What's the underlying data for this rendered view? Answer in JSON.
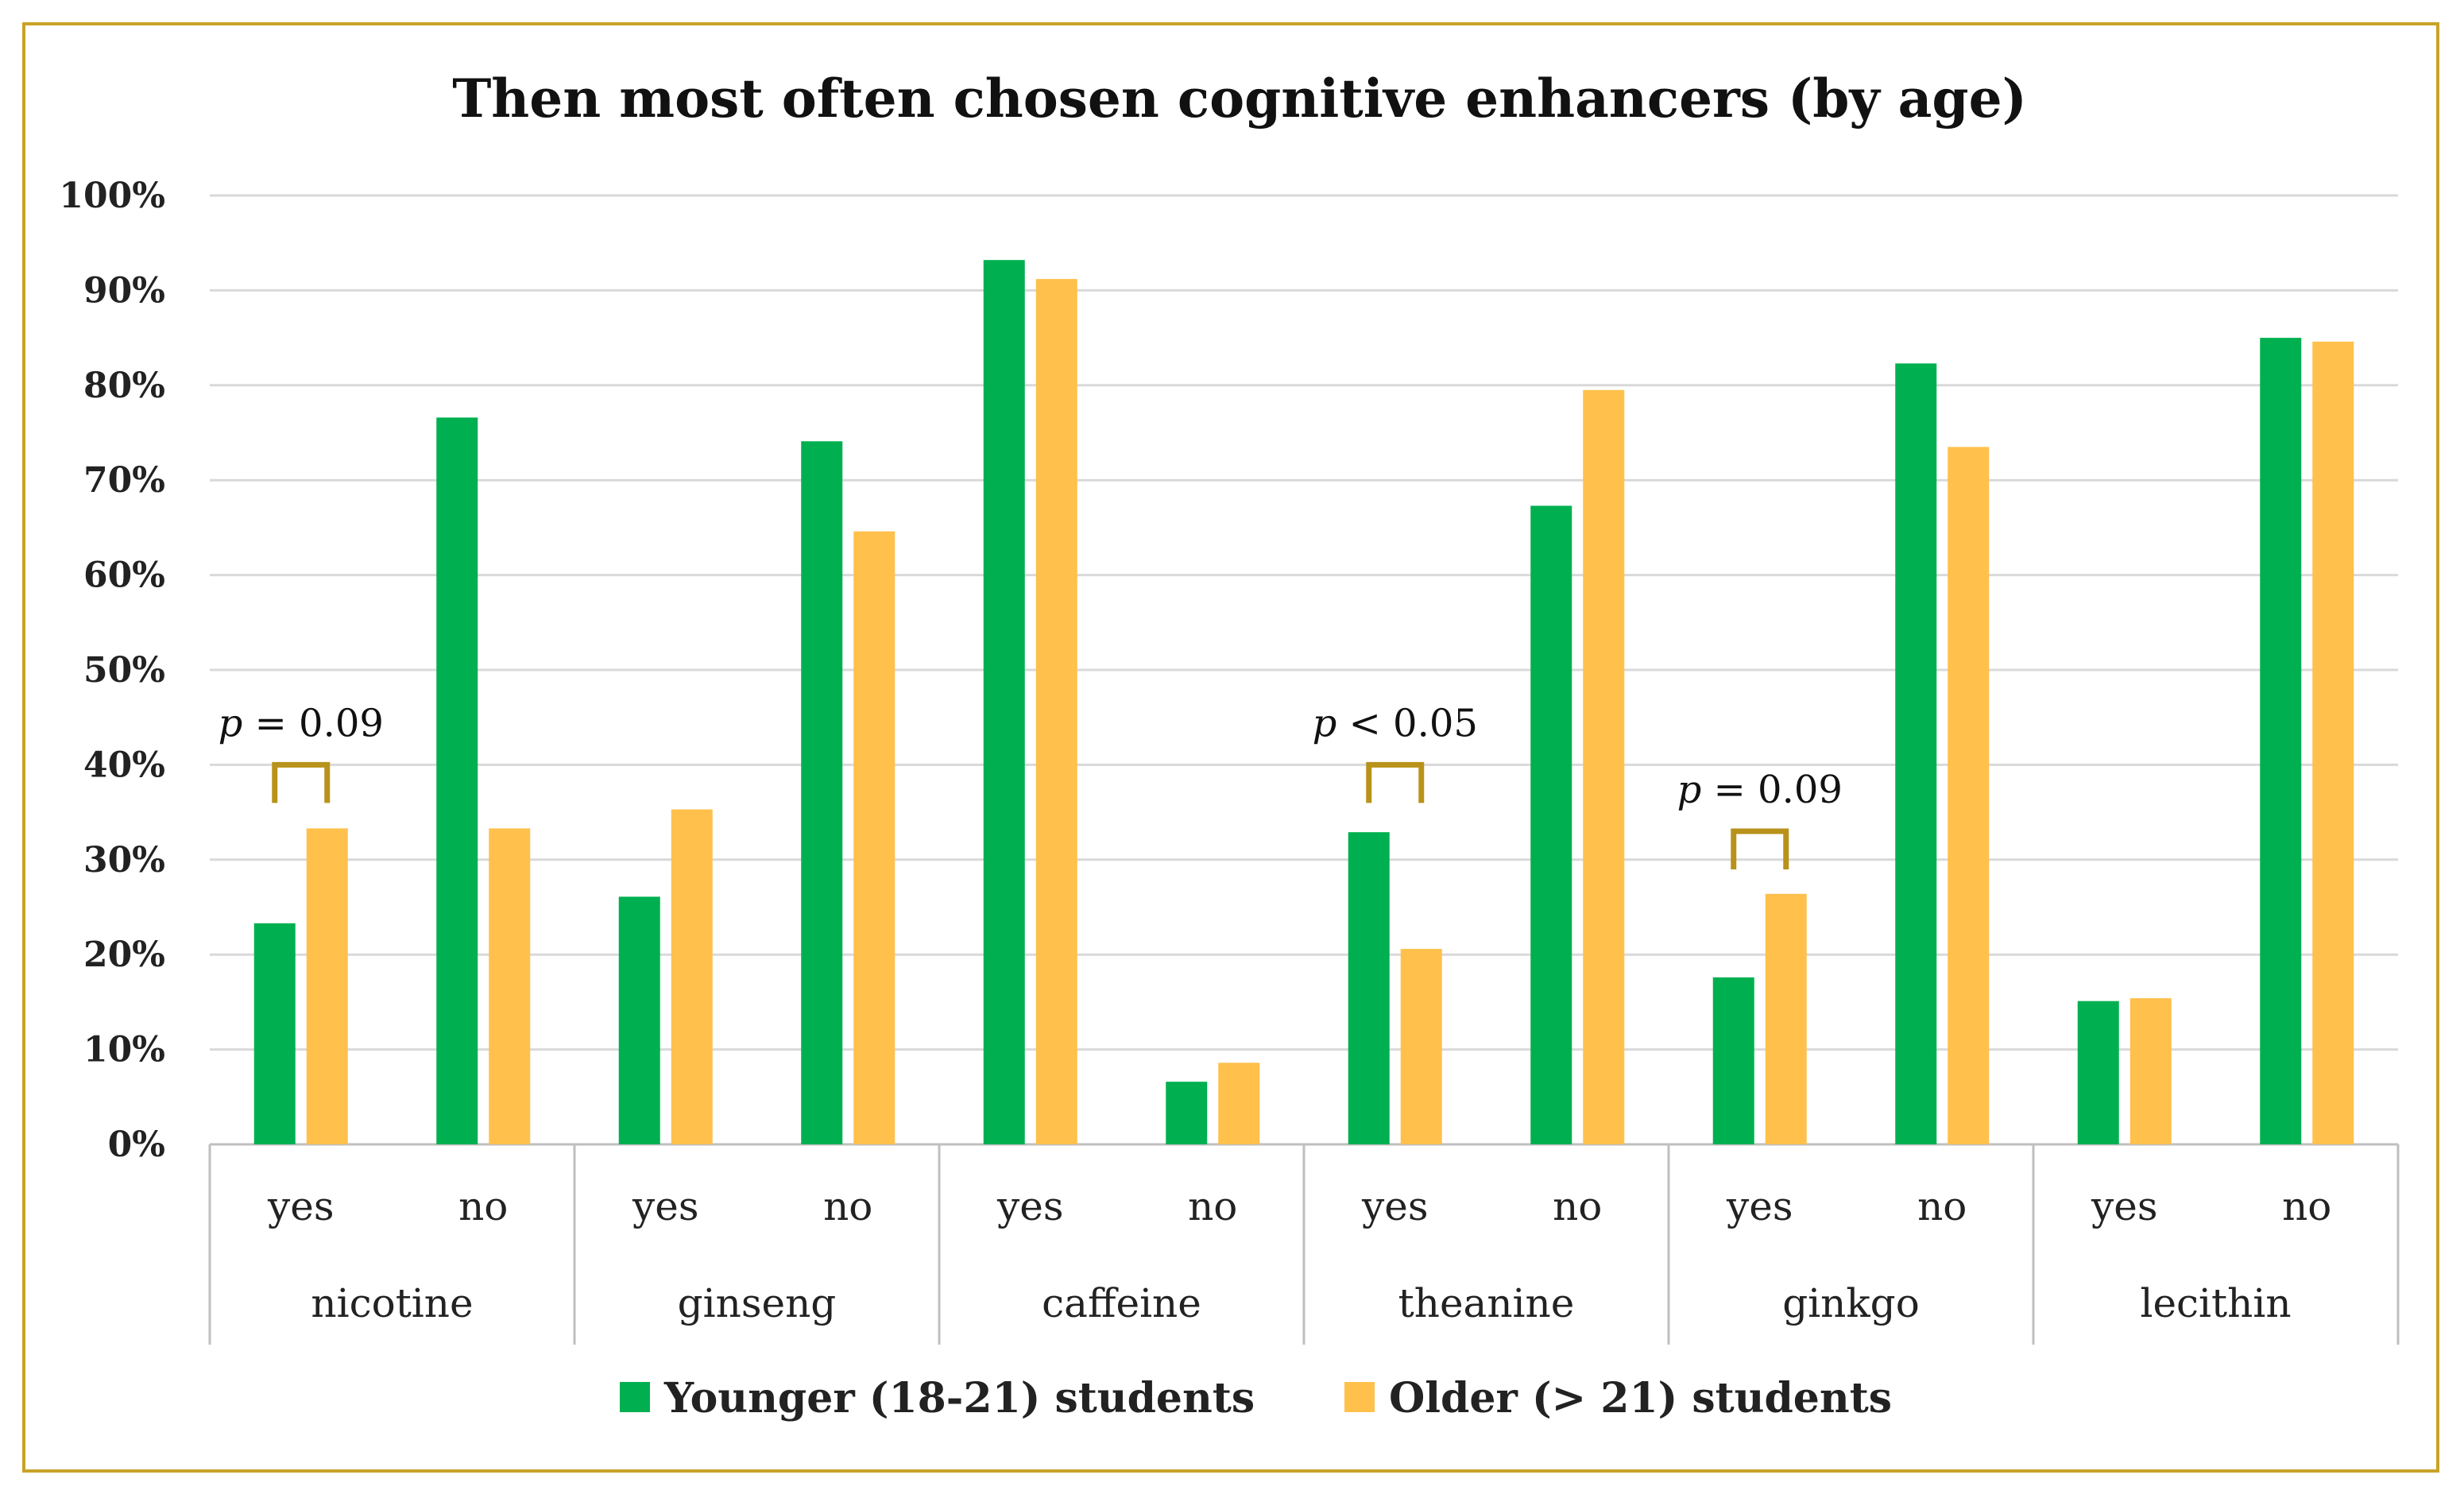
{
  "chart_data": {
    "type": "bar",
    "title": "Then most often chosen cognitive enhancers (by age)",
    "xlabel": "",
    "ylabel": "",
    "ylim": [
      0,
      100
    ],
    "y_ticks": [
      "0%",
      "10%",
      "20%",
      "30%",
      "40%",
      "50%",
      "60%",
      "70%",
      "80%",
      "90%",
      "100%"
    ],
    "grid": true,
    "legend_position": "bottom",
    "groups": [
      "nicotine",
      "ginseng",
      "caffeine",
      "theanine",
      "ginkgo",
      "lecithin"
    ],
    "categories": [
      "yes",
      "no",
      "yes",
      "no",
      "yes",
      "no",
      "yes",
      "no",
      "yes",
      "no",
      "yes",
      "no"
    ],
    "series": [
      {
        "name": "Younger (18-21) students",
        "color": "#00b050",
        "values": [
          23.3,
          76.6,
          26.1,
          74.1,
          93.2,
          6.6,
          32.9,
          67.3,
          17.6,
          82.3,
          15.1,
          85.0
        ]
      },
      {
        "name": "Older (> 21) students",
        "color": "#ffc04c",
        "values": [
          33.3,
          33.3,
          35.3,
          64.6,
          91.2,
          8.6,
          20.6,
          79.5,
          26.4,
          73.5,
          15.4,
          84.6
        ]
      }
    ],
    "annotations": [
      {
        "label_italic": "p",
        "label_rest": " = 0.09",
        "category_index": 0,
        "y_value": 40
      },
      {
        "label_italic": "p",
        "label_rest": " < 0.05",
        "category_index": 6,
        "y_value": 40
      },
      {
        "label_italic": "p",
        "label_rest": " = 0.09",
        "category_index": 8,
        "y_value": 33
      }
    ],
    "annotation_color": "#b8921a"
  }
}
